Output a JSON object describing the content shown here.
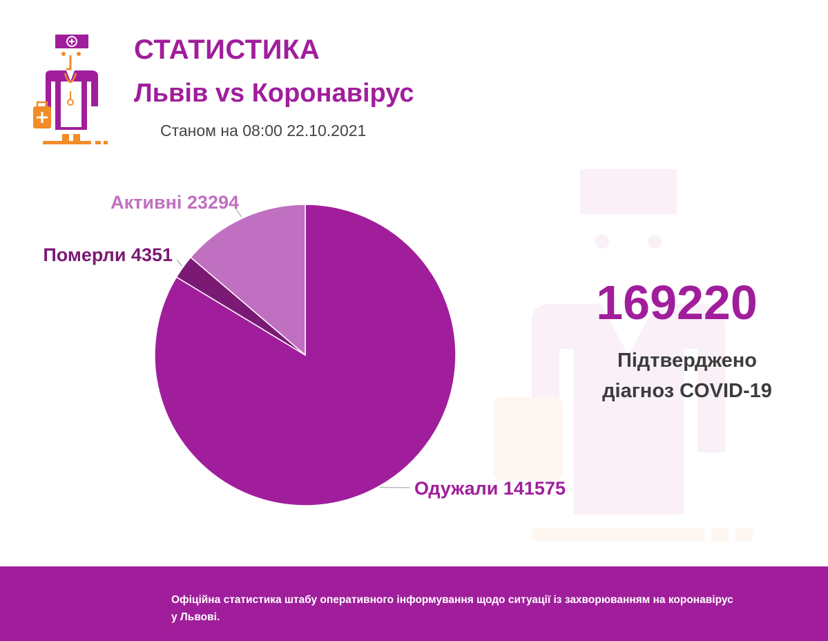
{
  "header": {
    "title": "СТАТИСТИКА",
    "subtitle": "Львів vs Коронавірус",
    "date_line": "Станом на 08:00 22.10.2021",
    "logo_icon": "doctor-icon"
  },
  "colors": {
    "accent": "#a01e9b",
    "deaths": "#7b1a74",
    "active": "#c070c0",
    "recovered": "#a01e9b",
    "logo_orange": "#f28c28"
  },
  "chart_data": {
    "type": "pie",
    "slices": [
      {
        "category": "Одужали",
        "value": 141575,
        "label": "Одужали 141575"
      },
      {
        "category": "Померли",
        "value": 4351,
        "label": "Померли 4351"
      },
      {
        "category": "Активні",
        "value": 23294,
        "label": "Активні 23294"
      }
    ],
    "legend": "none"
  },
  "summary": {
    "total": "169220",
    "caption_line1": "Підтверджено",
    "caption_line2": "діагноз COVID-19"
  },
  "footer": {
    "text": "Офіційна статистика штабу оперативного інформування щодо ситуації із захворюванням на коронавірус у Львові."
  }
}
